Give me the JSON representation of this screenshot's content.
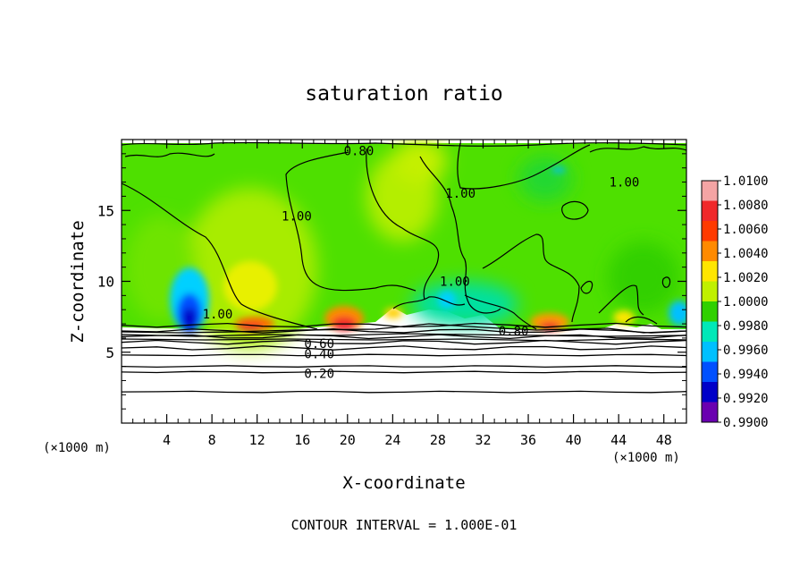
{
  "chart_data": {
    "type": "heatmap",
    "title": "saturation ratio",
    "xlabel": "X-coordinate",
    "ylabel": "Z-coordinate",
    "x_unit_left": "(×1000 m)",
    "x_unit_right": "(×1000 m)",
    "xlim": [
      0,
      50
    ],
    "ylim": [
      0,
      20
    ],
    "x_ticks": [
      "4",
      "8",
      "12",
      "16",
      "20",
      "24",
      "28",
      "32",
      "36",
      "40",
      "44",
      "48"
    ],
    "x_tick_values": [
      4,
      8,
      12,
      16,
      20,
      24,
      28,
      32,
      36,
      40,
      44,
      48
    ],
    "y_ticks": [
      "5",
      "10",
      "15"
    ],
    "y_tick_values": [
      5,
      10,
      15
    ],
    "footer": "CONTOUR INTERVAL = 1.000E-01",
    "colorbar": {
      "labels": [
        "1.0100",
        "1.0080",
        "1.0060",
        "1.0040",
        "1.0020",
        "1.0000",
        "0.9980",
        "0.9960",
        "0.9940",
        "0.9920",
        "0.9900"
      ],
      "colors": [
        "#f4a4a4",
        "#f0282a",
        "#ff3a00",
        "#ff8a00",
        "#ffe600",
        "#c0f000",
        "#30d000",
        "#00e8b8",
        "#00c0ff",
        "#0050ff",
        "#0000c8",
        "#6a00b0"
      ]
    },
    "contour_labels": [
      {
        "text": "0.80",
        "x": 21,
        "z": 19.2
      },
      {
        "text": "1.00",
        "x": 30,
        "z": 16.2
      },
      {
        "text": "1.00",
        "x": 44.5,
        "z": 17.0
      },
      {
        "text": "1.00",
        "x": 15.5,
        "z": 14.6
      },
      {
        "text": "1.00",
        "x": 29.5,
        "z": 10.0
      },
      {
        "text": "1.00",
        "x": 8.5,
        "z": 7.7
      },
      {
        "text": "0.80",
        "x": 34.7,
        "z": 6.5
      },
      {
        "text": "0.60",
        "x": 17.5,
        "z": 5.6
      },
      {
        "text": "0.40",
        "x": 17.5,
        "z": 4.9
      },
      {
        "text": "0.20",
        "x": 17.5,
        "z": 3.5
      }
    ],
    "low_levels_z": [
      6.9,
      6.5,
      6.1,
      5.7,
      5.3,
      4.8,
      4.0,
      3.6,
      2.2
    ],
    "hotspots": [
      {
        "x": 6,
        "z": 8.5,
        "value": 0.9915
      },
      {
        "x": 12,
        "z": 10.3,
        "value": 1.003
      },
      {
        "x": 20,
        "z": 7.2,
        "value": 1.006
      },
      {
        "x": 11.5,
        "z": 7.0,
        "value": 1.0055
      },
      {
        "x": 38,
        "z": 7.0,
        "value": 1.005
      }
    ]
  }
}
